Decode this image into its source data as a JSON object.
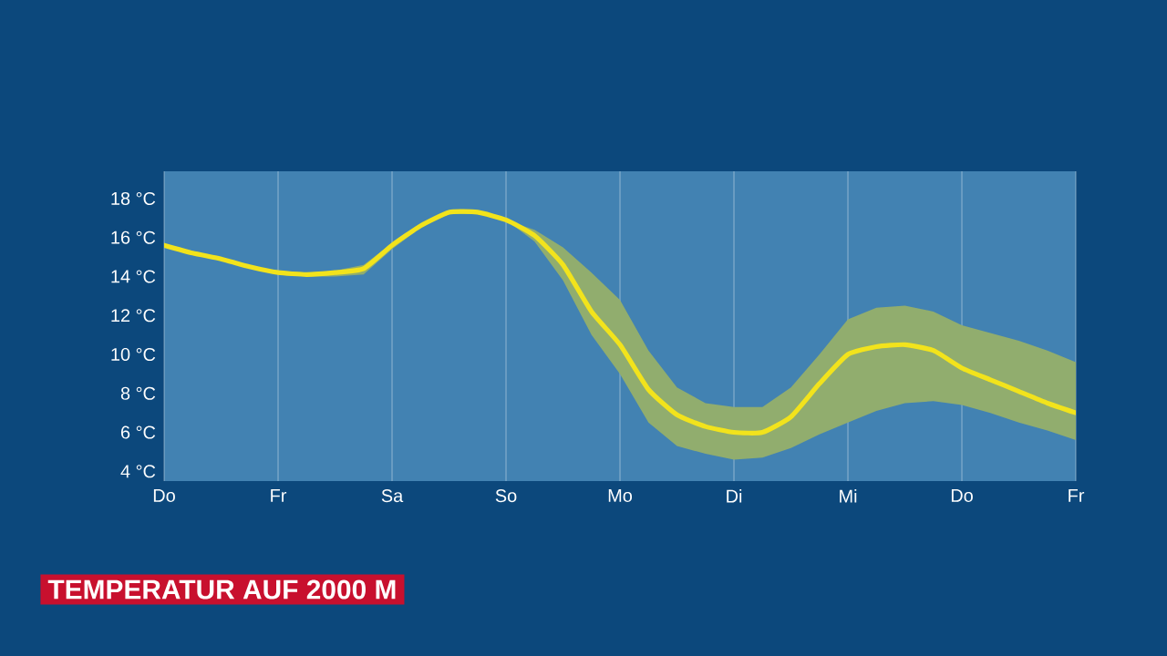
{
  "chart_data": {
    "type": "line",
    "title": "TEMPERATUR AUF 2000 M",
    "categories": [
      "Do",
      null,
      null,
      null,
      "Fr",
      null,
      null,
      null,
      "Sa",
      null,
      null,
      null,
      "So",
      null,
      null,
      null,
      "Mo",
      null,
      null,
      null,
      "Di",
      null,
      null,
      null,
      "Mi",
      null,
      null,
      null,
      "Do",
      null,
      null,
      null,
      "Fr"
    ],
    "series": [
      {
        "color": "#f2e31c",
        "values": [
          15.6,
          15.2,
          14.9,
          14.5,
          14.2,
          14.1,
          14.2,
          14.4,
          15.6,
          16.6,
          17.3,
          17.3,
          16.9,
          16.1,
          14.6,
          12.2,
          10.5,
          8.2,
          6.9,
          6.3,
          6.0,
          6.0,
          6.8,
          8.5,
          10.0,
          10.4,
          10.5,
          10.2,
          9.3,
          8.7,
          8.1,
          7.5,
          7.0
        ],
        "upper": [
          15.6,
          15.2,
          14.9,
          14.5,
          14.3,
          14.2,
          14.3,
          14.6,
          15.7,
          16.7,
          17.4,
          17.4,
          16.9,
          16.4,
          15.5,
          14.2,
          12.8,
          10.2,
          8.3,
          7.5,
          7.3,
          7.3,
          8.3,
          10.0,
          11.8,
          12.4,
          12.5,
          12.2,
          11.5,
          11.1,
          10.7,
          10.2,
          9.6
        ],
        "lower": [
          15.6,
          15.2,
          14.9,
          14.5,
          14.1,
          14.0,
          14.0,
          14.1,
          15.4,
          16.5,
          17.2,
          17.2,
          16.9,
          15.8,
          13.8,
          11.0,
          9.0,
          6.5,
          5.3,
          4.9,
          4.6,
          4.7,
          5.2,
          5.9,
          6.5,
          7.1,
          7.5,
          7.6,
          7.4,
          7.0,
          6.5,
          6.1,
          5.6
        ]
      }
    ],
    "ylim": [
      3.5,
      19.4
    ],
    "yticks": [
      {
        "value": 4,
        "label": "4 °C"
      },
      {
        "value": 6,
        "label": "6 °C"
      },
      {
        "value": 8,
        "label": "8 °C"
      },
      {
        "value": 10,
        "label": "10 °C"
      },
      {
        "value": 12,
        "label": "12 °C"
      },
      {
        "value": 14,
        "label": "14 °C"
      },
      {
        "value": 16,
        "label": "16 °C"
      },
      {
        "value": 18,
        "label": "18 °C"
      }
    ],
    "grid": "x"
  }
}
